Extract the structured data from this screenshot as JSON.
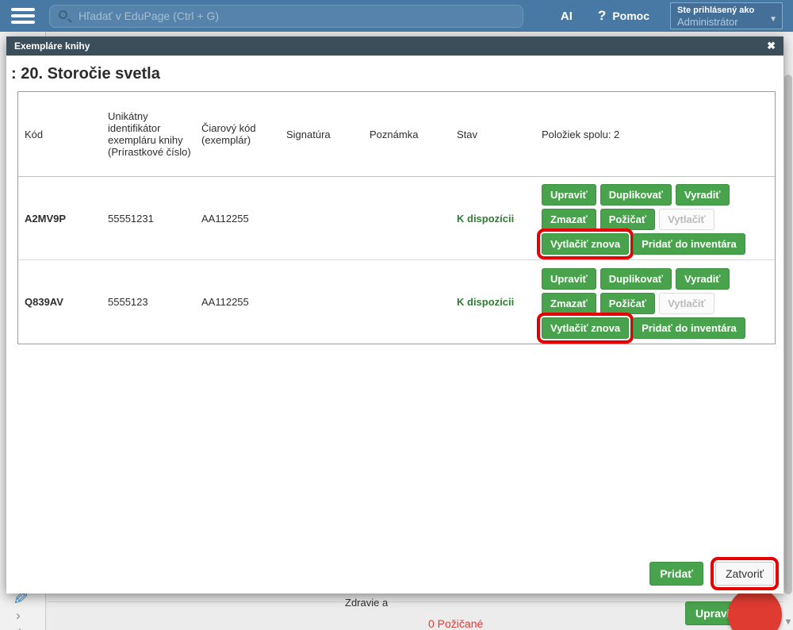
{
  "topbar": {
    "search_placeholder": "Hľadať v EduPage (Ctrl + G)",
    "ai_label": "AI",
    "help_icon": "?",
    "help_label": "Pomoc",
    "user_role_label": "Ste prihlásený ako",
    "user_name": "Administrátor",
    "dropdown_icon": "▼"
  },
  "modal": {
    "header_title": "Exempláre knihy",
    "close_icon": "✖",
    "book_title": ": 20. Storočie svetla",
    "table": {
      "columns": [
        "Kód",
        "Unikátny identifikátor exempláru knihy (Prírastkové číslo)",
        "Čiarový kód (exemplár)",
        "Signatúra",
        "Poznámka",
        "Stav"
      ],
      "items_total_label": "Položiek spolu: 2",
      "rows": [
        {
          "kod": "A2MV9P",
          "identifier": "55551231",
          "barcode": "AA112255",
          "signatura": "",
          "poznamka": "",
          "stav": "K dispozícii"
        },
        {
          "kod": "Q839AV",
          "identifier": "5555123",
          "barcode": "AA112255",
          "signatura": "",
          "poznamka": "",
          "stav": "K dispozícii"
        }
      ],
      "row_buttons": {
        "upravit": "Upraviť",
        "duplikovat": "Duplikovať",
        "vyradit": "Vyradiť",
        "zmazat": "Zmazať",
        "pozicat": "Požičať",
        "vytlacit": "Vytlačiť",
        "vytlacit_znova": "Vytlačiť znova",
        "pridat_do_inventara": "Pridať do inventára"
      }
    },
    "footer": {
      "pridat_label": "Pridať",
      "zatvorit_label": "Zatvoriť"
    }
  },
  "background": {
    "zdravie_text": "Zdravie a",
    "pozicane_text": "0 Požičané",
    "upravit_label": "Upraviť",
    "pencil_icon": "✎",
    "chevron_icon": "›",
    "gear_icon": "⚙",
    "scroll_down_icon": "▼"
  },
  "colors": {
    "topbar_bg": "#4779a4",
    "modal_header_bg": "#3c4e5a",
    "button_green": "#49a34d",
    "status_green": "#2e7d32",
    "annotation_red": "#e60000",
    "pozicane_red": "#e53935",
    "circle_red": "#df3b30"
  }
}
